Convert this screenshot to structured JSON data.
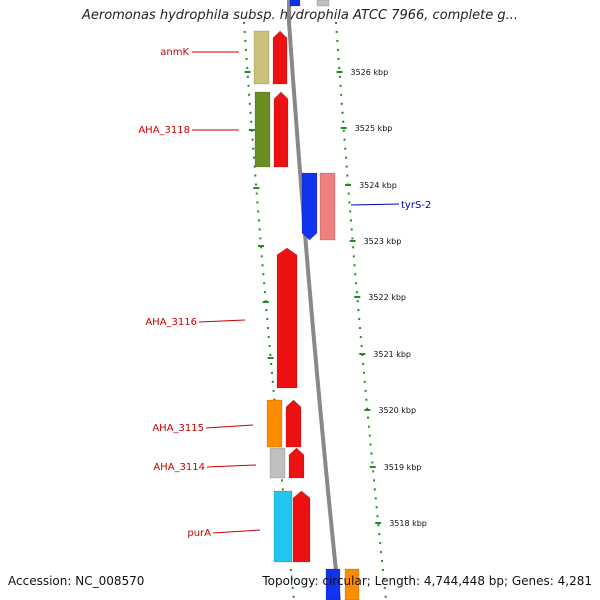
{
  "title": "Aeromonas hydrophila subsp. hydrophila ATCC 7966, complete g...",
  "footer": {
    "accession": "Accession: NC_008570",
    "stats": "Topology: circular; Length: 4,744,448 bp; Genes: 4,281"
  },
  "colors": {
    "label_red": "#cc0000",
    "label_blue": "#0000aa",
    "tick_green": "#228b22",
    "axis_gray": "#888888",
    "red": "#ee1111",
    "blue": "#1133ee",
    "pink": "#f08080",
    "khaki": "#c8c27c",
    "olive": "#6b8e23",
    "orange": "#ff8c00",
    "gray": "#c0c0c0",
    "cyan": "#22c4f0"
  },
  "kbp_labels": [
    "3526 kbp",
    "3525 kbp",
    "3524 kbp",
    "3523 kbp",
    "3522 kbp",
    "3521 kbp",
    "3520 kbp",
    "3519 kbp",
    "3518 kbp"
  ],
  "gene_labels": [
    {
      "text": "anmK",
      "color": "label_red",
      "side": "left"
    },
    {
      "text": "AHA_3118",
      "color": "label_red",
      "side": "left"
    },
    {
      "text": "tyrS-2",
      "color": "label_blue",
      "side": "right"
    },
    {
      "text": "AHA_3116",
      "color": "label_red",
      "side": "left"
    },
    {
      "text": "AHA_3115",
      "color": "label_red",
      "side": "left"
    },
    {
      "text": "AHA_3114",
      "color": "label_red",
      "side": "left"
    },
    {
      "text": "purA",
      "color": "label_red",
      "side": "left"
    }
  ]
}
